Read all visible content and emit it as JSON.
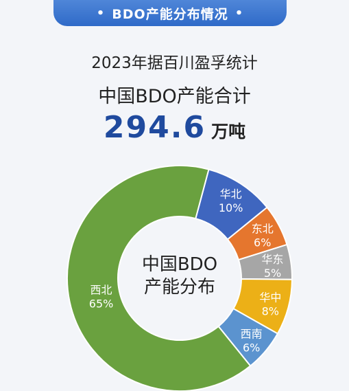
{
  "header": {
    "title": "BDO产能分布情况",
    "dot": "•"
  },
  "stats": {
    "source": "2023年据百川盈孚统计",
    "total_label": "中国BDO产能合计",
    "total_value": "294.6",
    "total_unit": "万吨"
  },
  "chart_data": {
    "type": "pie",
    "center_label": [
      "中国BDO",
      "产能分布"
    ],
    "categories": [
      "华北",
      "东北",
      "华东",
      "华中",
      "西南",
      "西北"
    ],
    "values": [
      10,
      6,
      5,
      8,
      6,
      65
    ],
    "value_labels": [
      "10%",
      "6%",
      "5%",
      "8%",
      "6%",
      "65%"
    ],
    "colors": [
      "#3f66bf",
      "#e5762e",
      "#a6a6a6",
      "#ecb017",
      "#5b93cf",
      "#6aa13f"
    ]
  }
}
